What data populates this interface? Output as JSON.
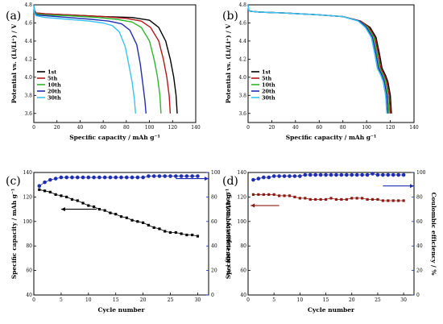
{
  "chart_data": [
    {
      "panel": "(a)",
      "type": "line",
      "xlabel": "Specific capacity / mAh g⁻¹",
      "ylabel": "Potential vs. (Li/Li⁺) / V",
      "xlim": [
        0,
        140
      ],
      "ylim": [
        3.5,
        4.8
      ],
      "xticks": [
        0,
        20,
        40,
        60,
        80,
        100,
        120,
        140
      ],
      "yticks": [
        3.6,
        3.8,
        4.0,
        4.2,
        4.4,
        4.6,
        4.8
      ],
      "legend": "left",
      "series": [
        {
          "name": "1st",
          "color": "#000000",
          "x": [
            0,
            0.5,
            2,
            10,
            30,
            60,
            85,
            100,
            108,
            114,
            118,
            121,
            123,
            124
          ],
          "y": [
            4.8,
            4.74,
            4.71,
            4.7,
            4.69,
            4.67,
            4.66,
            4.63,
            4.55,
            4.4,
            4.2,
            4.0,
            3.8,
            3.6
          ]
        },
        {
          "name": "5th",
          "color": "#b5161b",
          "x": [
            0,
            0.5,
            2,
            10,
            30,
            60,
            80,
            93,
            101,
            108,
            112,
            115,
            117,
            118
          ],
          "y": [
            4.8,
            4.74,
            4.71,
            4.7,
            4.69,
            4.67,
            4.65,
            4.62,
            4.55,
            4.4,
            4.2,
            4.0,
            3.8,
            3.6
          ]
        },
        {
          "name": "10th",
          "color": "#2fb52f",
          "x": [
            0,
            0.5,
            2,
            10,
            30,
            55,
            72,
            85,
            93,
            100,
            104,
            107,
            109,
            110
          ],
          "y": [
            4.8,
            4.73,
            4.7,
            4.69,
            4.68,
            4.66,
            4.64,
            4.61,
            4.55,
            4.4,
            4.2,
            4.0,
            3.8,
            3.6
          ]
        },
        {
          "name": "20th",
          "color": "#1f2fb0",
          "x": [
            0,
            0.5,
            2,
            10,
            30,
            50,
            65,
            76,
            83,
            89,
            92,
            94,
            96,
            97
          ],
          "y": [
            4.8,
            4.72,
            4.69,
            4.68,
            4.66,
            4.64,
            4.62,
            4.59,
            4.52,
            4.36,
            4.15,
            3.95,
            3.75,
            3.6
          ]
        },
        {
          "name": "30th",
          "color": "#39c3f2",
          "x": [
            0,
            0.5,
            2,
            10,
            30,
            48,
            60,
            68,
            74,
            79,
            82,
            85,
            87,
            88
          ],
          "y": [
            4.8,
            4.71,
            4.68,
            4.66,
            4.64,
            4.62,
            4.6,
            4.57,
            4.5,
            4.34,
            4.15,
            3.95,
            3.75,
            3.6
          ]
        }
      ]
    },
    {
      "panel": "(b)",
      "type": "line",
      "xlabel": "Specific capacity / mAh g⁻¹",
      "ylabel": "Potential vs. (Li/Li⁺) / V",
      "xlim": [
        0,
        140
      ],
      "ylim": [
        3.5,
        4.8
      ],
      "xticks": [
        0,
        20,
        40,
        60,
        80,
        100,
        120,
        140
      ],
      "yticks": [
        3.6,
        3.8,
        4.0,
        4.2,
        4.4,
        4.6,
        4.8
      ],
      "legend": "left",
      "series": [
        {
          "name": "1st",
          "color": "#000000",
          "x": [
            0,
            0.5,
            2,
            10,
            30,
            60,
            80,
            95,
            103,
            108,
            111,
            113,
            116,
            118,
            120,
            121
          ],
          "y": [
            4.8,
            4.74,
            4.73,
            4.72,
            4.71,
            4.69,
            4.67,
            4.62,
            4.55,
            4.44,
            4.25,
            4.1,
            4.02,
            3.95,
            3.8,
            3.6
          ]
        },
        {
          "name": "5th",
          "color": "#b5161b",
          "x": [
            0,
            0.5,
            2,
            10,
            30,
            60,
            80,
            95,
            102,
            107,
            110,
            112,
            115,
            117,
            119,
            120
          ],
          "y": [
            4.8,
            4.74,
            4.73,
            4.72,
            4.71,
            4.69,
            4.67,
            4.62,
            4.55,
            4.44,
            4.25,
            4.1,
            4.02,
            3.95,
            3.8,
            3.6
          ]
        },
        {
          "name": "10th",
          "color": "#2fb52f",
          "x": [
            0,
            0.5,
            2,
            10,
            30,
            60,
            80,
            94,
            101,
            106,
            109,
            111,
            114,
            116,
            118,
            119
          ],
          "y": [
            4.8,
            4.74,
            4.73,
            4.72,
            4.71,
            4.69,
            4.67,
            4.62,
            4.55,
            4.44,
            4.25,
            4.1,
            4.02,
            3.95,
            3.8,
            3.6
          ]
        },
        {
          "name": "20th",
          "color": "#1f2fb0",
          "x": [
            0,
            0.5,
            2,
            10,
            30,
            60,
            80,
            94,
            100,
            105,
            108,
            110,
            113,
            115,
            117,
            118
          ],
          "y": [
            4.8,
            4.74,
            4.73,
            4.72,
            4.71,
            4.69,
            4.67,
            4.62,
            4.55,
            4.44,
            4.25,
            4.1,
            4.02,
            3.95,
            3.8,
            3.6
          ]
        },
        {
          "name": "30th",
          "color": "#39c3f2",
          "x": [
            0,
            0.5,
            2,
            10,
            30,
            60,
            80,
            93,
            99,
            104,
            107,
            109,
            112,
            114,
            116,
            117
          ],
          "y": [
            4.8,
            4.74,
            4.73,
            4.72,
            4.71,
            4.69,
            4.67,
            4.62,
            4.55,
            4.44,
            4.25,
            4.1,
            4.02,
            3.95,
            3.8,
            3.6
          ]
        }
      ]
    },
    {
      "panel": "(c)",
      "type": "scatter",
      "xlabel": "Cycle number",
      "ylabel": "Specific capacity / mAh g⁻¹",
      "y2label": "Coulombic efficiency / %",
      "xlim": [
        0,
        32
      ],
      "ylim": [
        40,
        140
      ],
      "y2lim": [
        0,
        100
      ],
      "xticks": [
        0,
        5,
        10,
        15,
        20,
        25,
        30
      ],
      "yticks": [
        40,
        60,
        80,
        100,
        120,
        140
      ],
      "y2ticks": [
        0,
        20,
        40,
        60,
        80,
        100
      ],
      "arrows": [
        {
          "x_from": 11.5,
          "x_to": 5,
          "y": 110,
          "color": "#000000",
          "axis": "left"
        },
        {
          "x_from": 26,
          "x_to": 32,
          "y": 95,
          "color": "#1f2fb0",
          "axis": "right"
        }
      ],
      "series": [
        {
          "name": "capacity",
          "axis": "left",
          "marker": "square",
          "color": "#000000",
          "x": [
            1,
            2,
            3,
            4,
            5,
            6,
            7,
            8,
            9,
            10,
            11,
            12,
            13,
            14,
            15,
            16,
            17,
            18,
            19,
            20,
            21,
            22,
            23,
            24,
            25,
            26,
            27,
            28,
            29,
            30
          ],
          "y": [
            126,
            125,
            124,
            122,
            121,
            120,
            118,
            117,
            115,
            113,
            112,
            110,
            109,
            107,
            106,
            104,
            103,
            101,
            100,
            99,
            97,
            95,
            94,
            92,
            91,
            91,
            90,
            89,
            89,
            88
          ]
        },
        {
          "name": "efficiency",
          "axis": "right",
          "marker": "circle",
          "color": "#1f2fb0",
          "x": [
            1,
            2,
            3,
            4,
            5,
            6,
            7,
            8,
            9,
            10,
            11,
            12,
            13,
            14,
            15,
            16,
            17,
            18,
            19,
            20,
            21,
            22,
            23,
            24,
            25,
            26,
            27,
            28,
            29,
            30
          ],
          "y": [
            89,
            92,
            94,
            95,
            96,
            96,
            96,
            96,
            96,
            96,
            96,
            96,
            96,
            96,
            96,
            96,
            96,
            96,
            96,
            96,
            97,
            97,
            97,
            97,
            97,
            97,
            97,
            97,
            97,
            97
          ]
        }
      ]
    },
    {
      "panel": "(d)",
      "type": "scatter",
      "xlabel": "Cycle number",
      "ylabel": "Specific capacity / mAh g⁻¹",
      "y2label": "Coulombic efficiency / %",
      "xlim": [
        0,
        32
      ],
      "ylim": [
        40,
        140
      ],
      "y2lim": [
        0,
        100
      ],
      "xticks": [
        0,
        5,
        10,
        15,
        20,
        25,
        30
      ],
      "yticks": [
        40,
        60,
        80,
        100,
        120,
        140
      ],
      "y2ticks": [
        0,
        20,
        40,
        60,
        80,
        100
      ],
      "arrows": [
        {
          "x_from": 6,
          "x_to": 0.5,
          "y": 113,
          "color": "#8b1a12",
          "axis": "left"
        },
        {
          "x_from": 26,
          "x_to": 32,
          "y": 89,
          "color": "#1f2fb0",
          "axis": "right"
        }
      ],
      "series": [
        {
          "name": "capacity",
          "axis": "left",
          "marker": "square",
          "color": "#8b1a12",
          "x": [
            1,
            2,
            3,
            4,
            5,
            6,
            7,
            8,
            9,
            10,
            11,
            12,
            13,
            14,
            15,
            16,
            17,
            18,
            19,
            20,
            21,
            22,
            23,
            24,
            25,
            26,
            27,
            28,
            29,
            30
          ],
          "y": [
            122,
            122,
            122,
            122,
            122,
            121,
            121,
            121,
            120,
            119,
            119,
            118,
            118,
            118,
            118,
            119,
            118,
            118,
            118,
            119,
            119,
            119,
            118,
            118,
            118,
            117,
            117,
            117,
            117,
            117
          ]
        },
        {
          "name": "efficiency",
          "axis": "right",
          "marker": "circle",
          "color": "#1f2fb0",
          "x": [
            1,
            2,
            3,
            4,
            5,
            6,
            7,
            8,
            9,
            10,
            11,
            12,
            13,
            14,
            15,
            16,
            17,
            18,
            19,
            20,
            21,
            22,
            23,
            24,
            25,
            26,
            27,
            28,
            29,
            30
          ],
          "y": [
            94,
            95,
            96,
            96,
            97,
            97,
            97,
            97,
            97,
            97,
            98,
            98,
            98,
            98,
            98,
            98,
            98,
            98,
            98,
            98,
            98,
            98,
            98,
            99,
            98,
            98,
            98,
            98,
            98,
            98
          ]
        }
      ]
    }
  ]
}
